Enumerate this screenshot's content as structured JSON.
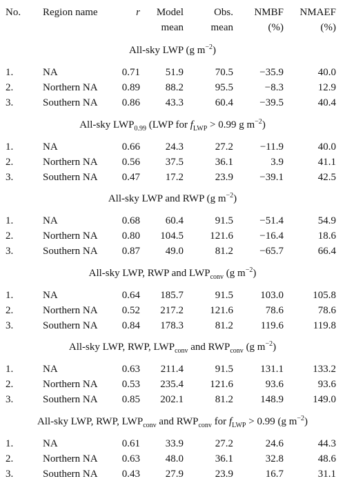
{
  "header": [
    [
      "No."
    ],
    [
      "Region name"
    ],
    [
      {
        "i": "r"
      }
    ],
    [
      "Model",
      "mean"
    ],
    [
      "Obs.",
      "mean"
    ],
    [
      "NMBF",
      "(%)"
    ],
    [
      "NMAEF",
      "(%)"
    ]
  ],
  "sections": [
    {
      "title": [
        "All-sky LWP (g m",
        {
          "sup": "−2"
        },
        ")"
      ],
      "rows": [
        [
          "1.",
          "NA",
          "0.71",
          "51.9",
          "70.5",
          "−35.9",
          "40.0"
        ],
        [
          "2.",
          "Northern NA",
          "0.89",
          "88.2",
          "95.5",
          "−8.3",
          "12.9"
        ],
        [
          "3.",
          "Southern NA",
          "0.86",
          "43.3",
          "60.4",
          "−39.5",
          "40.4"
        ]
      ]
    },
    {
      "title": [
        "All-sky LWP",
        {
          "sub": "0.99"
        },
        " (LWP for ",
        {
          "i": "f"
        },
        {
          "sub": "LWP"
        },
        " > 0.99 g m",
        {
          "sup": "−2"
        },
        ")"
      ],
      "rows": [
        [
          "1.",
          "NA",
          "0.66",
          "24.3",
          "27.2",
          "−11.9",
          "40.0"
        ],
        [
          "2.",
          "Northern NA",
          "0.56",
          "37.5",
          "36.1",
          "3.9",
          "41.1"
        ],
        [
          "3.",
          "Southern NA",
          "0.47",
          "17.2",
          "23.9",
          "−39.1",
          "42.5"
        ]
      ]
    },
    {
      "title": [
        "All-sky LWP and RWP (g m",
        {
          "sup": "−2"
        },
        ")"
      ],
      "rows": [
        [
          "1.",
          "NA",
          "0.68",
          "60.4",
          "91.5",
          "−51.4",
          "54.9"
        ],
        [
          "2.",
          "Northern NA",
          "0.80",
          "104.5",
          "121.6",
          "−16.4",
          "18.6"
        ],
        [
          "3.",
          "Southern NA",
          "0.87",
          "49.0",
          "81.2",
          "−65.7",
          "66.4"
        ]
      ]
    },
    {
      "title": [
        "All-sky LWP, RWP and LWP",
        {
          "sub": "conv"
        },
        " (g m",
        {
          "sup": "−2"
        },
        ")"
      ],
      "rows": [
        [
          "1.",
          "NA",
          "0.64",
          "185.7",
          "91.5",
          "103.0",
          "105.8"
        ],
        [
          "2.",
          "Northern NA",
          "0.52",
          "217.2",
          "121.6",
          "78.6",
          "78.6"
        ],
        [
          "3.",
          "Southern NA",
          "0.84",
          "178.3",
          "81.2",
          "119.6",
          "119.8"
        ]
      ]
    },
    {
      "title": [
        "All-sky LWP, RWP, LWP",
        {
          "sub": "conv"
        },
        " and RWP",
        {
          "sub": "conv"
        },
        " (g m",
        {
          "sup": "−2"
        },
        ")"
      ],
      "rows": [
        [
          "1.",
          "NA",
          "0.63",
          "211.4",
          "91.5",
          "131.1",
          "133.2"
        ],
        [
          "2.",
          "Northern NA",
          "0.53",
          "235.4",
          "121.6",
          "93.6",
          "93.6"
        ],
        [
          "3.",
          "Southern NA",
          "0.85",
          "202.1",
          "81.2",
          "148.9",
          "149.0"
        ]
      ]
    },
    {
      "title": [
        "All-sky LWP, RWP, LWP",
        {
          "sub": "conv"
        },
        " and RWP",
        {
          "sub": "conv"
        },
        " for ",
        {
          "i": "f"
        },
        {
          "sub": "LWP"
        },
        " > 0.99 (g m",
        {
          "sup": "−2"
        },
        ")"
      ],
      "rows": [
        [
          "1.",
          "NA",
          "0.61",
          "33.9",
          "27.2",
          "24.6",
          "44.3"
        ],
        [
          "2.",
          "Northern NA",
          "0.63",
          "48.0",
          "36.1",
          "32.8",
          "48.6"
        ],
        [
          "3.",
          "Southern NA",
          "0.43",
          "27.9",
          "23.9",
          "16.7",
          "31.1"
        ]
      ]
    }
  ]
}
